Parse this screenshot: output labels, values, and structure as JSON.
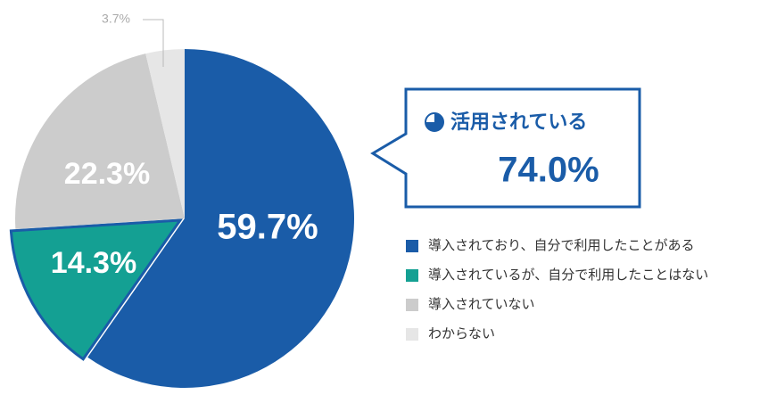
{
  "chart_data": {
    "type": "pie",
    "categories": [
      "導入されており、自分で利用したことがある",
      "導入されているが、自分で利用したことはない",
      "導入されていない",
      "わからない"
    ],
    "values": [
      59.7,
      14.3,
      22.3,
      3.7
    ],
    "value_labels": [
      "59.7%",
      "14.3%",
      "22.3%",
      "3.7%"
    ],
    "colors": [
      "#1a5ca8",
      "#14a093",
      "#cccccc",
      "#e6e6e6"
    ],
    "callout": {
      "title": "活用されている",
      "text": "74.0%"
    }
  }
}
